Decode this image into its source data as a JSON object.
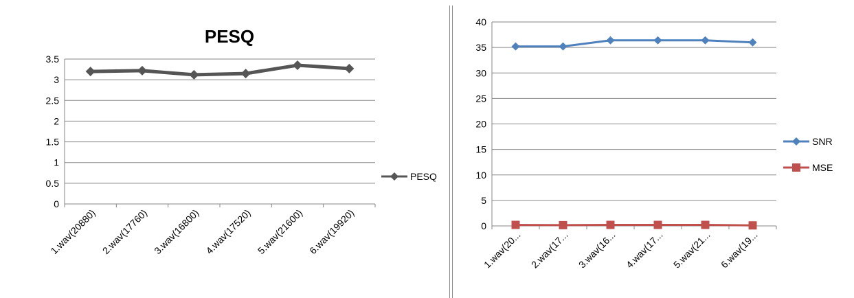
{
  "charts": [
    {
      "type": "line",
      "title": "PESQ",
      "categories": [
        "1.wav(20880)",
        "2.wav(17760)",
        "3.wav(16800)",
        "4.wav(17520)",
        "5.wav(21600)",
        "6.wav(19920)"
      ],
      "series": [
        {
          "name": "PESQ",
          "values": [
            3.2,
            3.22,
            3.12,
            3.15,
            3.35,
            3.27
          ],
          "color": "#555555",
          "marker": "diamond"
        }
      ],
      "ylim": [
        0,
        3.5
      ],
      "yticks": [
        "0",
        "0.5",
        "1",
        "1.5",
        "2",
        "2.5",
        "3",
        "3.5"
      ],
      "grid": true,
      "legend": "right"
    },
    {
      "type": "line",
      "title": "",
      "categories": [
        "1.wav(20...",
        "2.wav(17...",
        "3.wav(16...",
        "4.wav(17...",
        "5.wav(21...",
        "6.wav(19..."
      ],
      "series": [
        {
          "name": "SNR",
          "values": [
            35.2,
            35.2,
            36.4,
            36.4,
            36.4,
            36.0
          ],
          "color": "#4f81bd",
          "marker": "diamond"
        },
        {
          "name": "MSE",
          "values": [
            0.2,
            0.15,
            0.2,
            0.2,
            0.2,
            0.1
          ],
          "color": "#c0504d",
          "marker": "square"
        }
      ],
      "ylim": [
        0,
        40
      ],
      "yticks": [
        "0",
        "5",
        "10",
        "15",
        "20",
        "25",
        "30",
        "35",
        "40"
      ],
      "grid": true,
      "legend": "right"
    }
  ],
  "chart_data": [
    {
      "type": "line",
      "title": "PESQ",
      "categories": [
        "1.wav(20880)",
        "2.wav(17760)",
        "3.wav(16800)",
        "4.wav(17520)",
        "5.wav(21600)",
        "6.wav(19920)"
      ],
      "series": [
        {
          "name": "PESQ",
          "values": [
            3.2,
            3.22,
            3.12,
            3.15,
            3.35,
            3.27
          ]
        }
      ],
      "xlabel": "",
      "ylabel": "",
      "ylim": [
        0,
        3.5
      ],
      "grid": true,
      "legend": "right"
    },
    {
      "type": "line",
      "title": "",
      "categories": [
        "1.wav(20...",
        "2.wav(17...",
        "3.wav(16...",
        "4.wav(17...",
        "5.wav(21...",
        "6.wav(19..."
      ],
      "series": [
        {
          "name": "SNR",
          "values": [
            35.2,
            35.2,
            36.4,
            36.4,
            36.4,
            36.0
          ]
        },
        {
          "name": "MSE",
          "values": [
            0.2,
            0.15,
            0.2,
            0.2,
            0.2,
            0.1
          ]
        }
      ],
      "xlabel": "",
      "ylabel": "",
      "ylim": [
        0,
        40
      ],
      "grid": true,
      "legend": "right"
    }
  ]
}
